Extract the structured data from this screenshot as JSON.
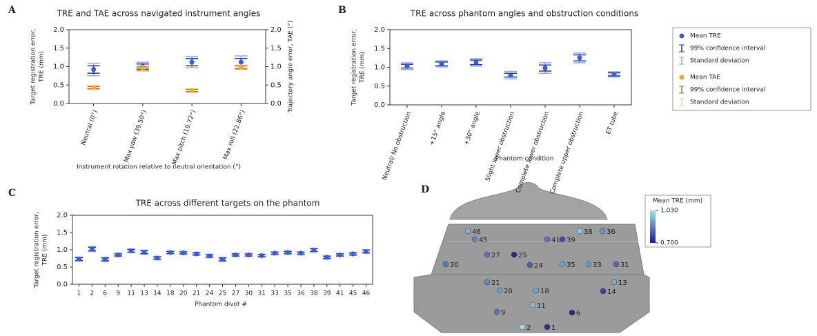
{
  "chart_data": [
    {
      "type": "errorbar",
      "panel": "A",
      "title": "TRE and TAE across navigated instrument angles",
      "xlabel": "Instrument rotation relative to neutral orientation (°)",
      "ylabel": [
        "Target registration error,",
        "TRE (mm)"
      ],
      "y2label": "Trajectory angle error, TAE (°)",
      "categories": [
        "Neutral (0°)",
        "Max yaw (39.50°)",
        "Max pitch (19.72°)",
        "Max roll (22.86°)"
      ],
      "series": [
        {
          "name": "Mean TRE",
          "color": "#3a5bd9",
          "ci_color": "#26358f",
          "sd_color": "#8ea6ee",
          "ci_name": "99% confidence interval",
          "sd_name": "Standard deviation",
          "values": [
            0.92,
            1.0,
            1.12,
            1.12
          ],
          "ci": [
            0.1,
            0.07,
            0.1,
            0.1
          ],
          "sd": [
            0.17,
            0.12,
            0.15,
            0.17
          ]
        },
        {
          "name": "Mean TAE",
          "axis": "y2",
          "color": "#f0a830",
          "ci_color": "#b07818",
          "sd_color": "#f5d28a",
          "ci_name": "99% confidence interval",
          "sd_name": "Standard deviation",
          "values": [
            0.43,
            0.95,
            0.35,
            0.98
          ],
          "ci": [
            0.03,
            0.04,
            0.03,
            0.04
          ],
          "sd": [
            0.05,
            0.07,
            0.05,
            0.06
          ]
        }
      ],
      "ylim": [
        0,
        2
      ],
      "yticks": [
        {
          "value": 0,
          "label": "0.0"
        },
        {
          "value": 0.5,
          "label": "0.5"
        },
        {
          "value": 1,
          "label": "1.0"
        },
        {
          "value": 1.5,
          "label": "1.5"
        },
        {
          "value": 2,
          "label": "2.0"
        }
      ],
      "y2lim": [
        0,
        2
      ],
      "y2ticks": [
        {
          "value": 0,
          "label": "0.0"
        },
        {
          "value": 0.5,
          "label": "0.5"
        },
        {
          "value": 1,
          "label": "1.0"
        },
        {
          "value": 1.5,
          "label": "1.5"
        },
        {
          "value": 2,
          "label": "2.0"
        }
      ]
    },
    {
      "type": "errorbar",
      "panel": "B",
      "title": "TRE across phantom angles and obstruction conditions",
      "xlabel": "Phantom condition",
      "ylabel": [
        "Target registration error,",
        "TRE (mm)"
      ],
      "categories": [
        "Neutral/ No obstruction",
        "+15° angle",
        "+30° angle",
        "Slight lower obstruction",
        "Complete lower obstruction",
        "Complete upper obstruction",
        "ET tube"
      ],
      "series": [
        {
          "color": "#3a5bd9",
          "ci_color": "#26358f",
          "sd_color": "#8ea6ee",
          "values": [
            1.03,
            1.09,
            1.13,
            0.79,
            0.98,
            1.25,
            0.81
          ],
          "ci": [
            0.05,
            0.05,
            0.06,
            0.05,
            0.08,
            0.08,
            0.04
          ],
          "sd": [
            0.09,
            0.08,
            0.1,
            0.1,
            0.14,
            0.13,
            0.07
          ]
        }
      ],
      "ylim": [
        0,
        2
      ],
      "yticks": [
        {
          "value": 0,
          "label": "0.0"
        },
        {
          "value": 0.5,
          "label": "0.5"
        },
        {
          "value": 1,
          "label": "1.0"
        },
        {
          "value": 1.5,
          "label": "1.5"
        },
        {
          "value": 2,
          "label": "2.0"
        }
      ]
    },
    {
      "type": "errorbar",
      "panel": "C",
      "title": "TRE across different targets on the phantom",
      "xlabel": "Phantom divot #",
      "ylabel": [
        "Target registration error,",
        "TRE (mm)"
      ],
      "categories": [
        "1",
        "2",
        "6",
        "9",
        "11",
        "13",
        "14",
        "18",
        "20",
        "21",
        "24",
        "25",
        "27",
        "30",
        "31",
        "33",
        "35",
        "36",
        "38",
        "39",
        "41",
        "45",
        "46"
      ],
      "series": [
        {
          "color": "#3a5bd9",
          "ci_color": "#26358f",
          "sd_color": "#8ea6ee",
          "values": [
            0.73,
            1.02,
            0.72,
            0.85,
            0.97,
            0.93,
            0.76,
            0.92,
            0.91,
            0.88,
            0.82,
            0.72,
            0.85,
            0.85,
            0.83,
            0.9,
            0.92,
            0.9,
            0.99,
            0.78,
            0.85,
            0.88,
            0.95
          ],
          "ci": [
            0.04,
            0.05,
            0.04,
            0.03,
            0.04,
            0.04,
            0.03,
            0.03,
            0.03,
            0.03,
            0.03,
            0.04,
            0.03,
            0.03,
            0.03,
            0.03,
            0.03,
            0.03,
            0.04,
            0.03,
            0.03,
            0.03,
            0.04
          ],
          "sd": [
            0.06,
            0.07,
            0.06,
            0.05,
            0.05,
            0.06,
            0.05,
            0.04,
            0.04,
            0.04,
            0.05,
            0.06,
            0.04,
            0.04,
            0.04,
            0.04,
            0.05,
            0.04,
            0.05,
            0.05,
            0.04,
            0.04,
            0.05
          ]
        }
      ],
      "ylim": [
        0,
        2
      ],
      "yticks": [
        {
          "value": 0,
          "label": "0.0"
        },
        {
          "value": 0.5,
          "label": "0.5"
        },
        {
          "value": 1,
          "label": "1.0"
        },
        {
          "value": 1.5,
          "label": "1.5"
        },
        {
          "value": 2,
          "label": "2.0"
        }
      ]
    },
    {
      "type": "pointmap",
      "panel": "D",
      "colorbar_label": "Mean TRE (mm)",
      "clim": [
        0.7,
        1.03
      ],
      "cticks": [
        {
          "value": 1.03,
          "label": "1.030"
        },
        {
          "value": 0.7,
          "label": "0.700"
        }
      ],
      "points": [
        {
          "label": "46",
          "value": 0.95
        },
        {
          "label": "45",
          "value": 0.88
        },
        {
          "label": "41",
          "value": 0.85
        },
        {
          "label": "39",
          "value": 0.78
        },
        {
          "label": "38",
          "value": 0.99
        },
        {
          "label": "36",
          "value": 0.9
        },
        {
          "label": "27",
          "value": 0.85
        },
        {
          "label": "25",
          "value": 0.72
        },
        {
          "label": "30",
          "value": 0.85
        },
        {
          "label": "24",
          "value": 0.82
        },
        {
          "label": "35",
          "value": 0.92
        },
        {
          "label": "33",
          "value": 0.9
        },
        {
          "label": "31",
          "value": 0.83
        },
        {
          "label": "21",
          "value": 0.88
        },
        {
          "label": "13",
          "value": 0.93
        },
        {
          "label": "20",
          "value": 0.91
        },
        {
          "label": "18",
          "value": 0.92
        },
        {
          "label": "14",
          "value": 0.76
        },
        {
          "label": "11",
          "value": 0.97
        },
        {
          "label": "9",
          "value": 0.85
        },
        {
          "label": "6",
          "value": 0.72
        },
        {
          "label": "2",
          "value": 1.02
        },
        {
          "label": "1",
          "value": 0.73
        }
      ]
    }
  ]
}
